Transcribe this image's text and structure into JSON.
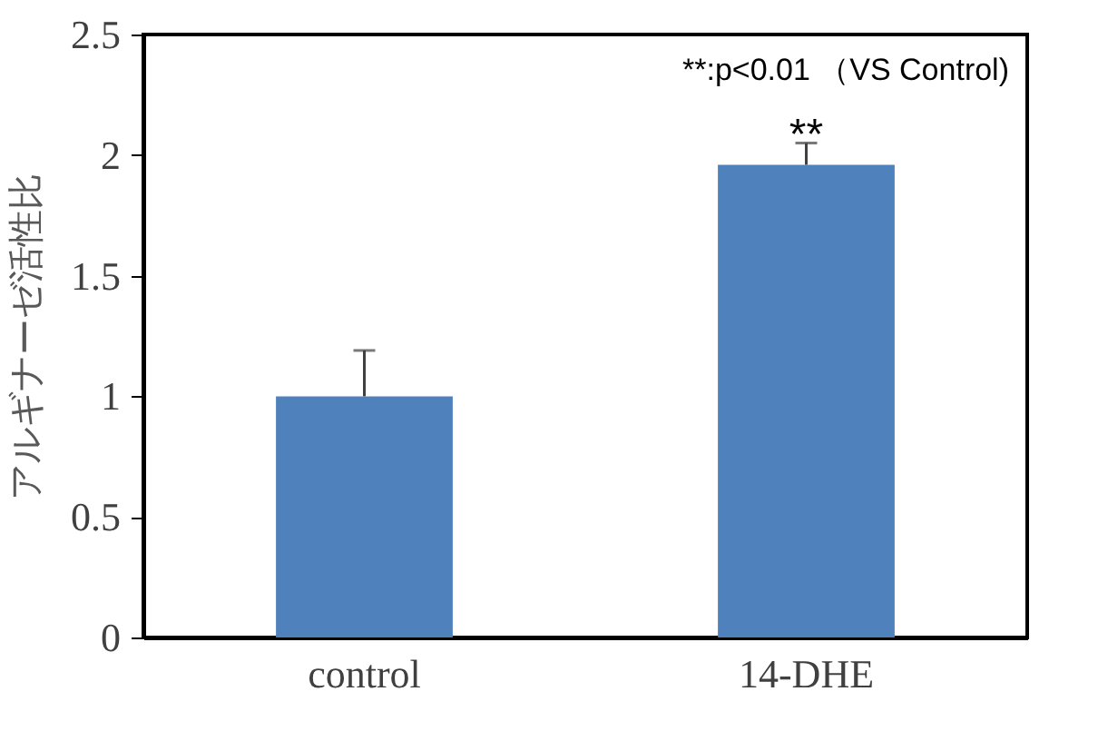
{
  "chart_data": {
    "type": "bar",
    "ylabel": "アルギナーゼ活性比",
    "categories": [
      "control",
      "14-DHE"
    ],
    "values": [
      1.0,
      1.96
    ],
    "color": "#4f81bd",
    "errors": [
      [
        1.0,
        1.19
      ],
      [
        1.96,
        2.05
      ]
    ],
    "ylim": [
      0,
      2.5
    ],
    "yticks": [
      0,
      0.5,
      1,
      1.5,
      2,
      2.5
    ],
    "grid": false,
    "annotations": [
      "**:p<0.01 （VS Control)",
      {
        "text": "**",
        "x": "14-DHE",
        "y": 2.05
      }
    ]
  }
}
